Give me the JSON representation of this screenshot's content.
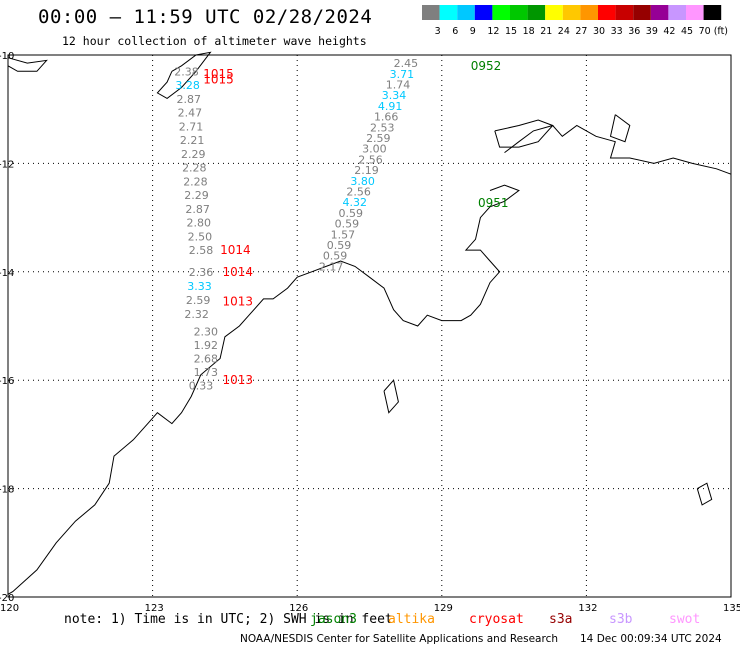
{
  "title": "00:00 – 11:59 UTC 02/28/2024",
  "subtitle": "12 hour collection of altimeter wave heights",
  "color_scale": {
    "labels": [
      "3",
      "6",
      "9",
      "12",
      "15",
      "18",
      "21",
      "24",
      "27",
      "30",
      "33",
      "36",
      "39",
      "42",
      "45",
      "70 (ft)"
    ],
    "colors": [
      "#7f7f7f",
      "#00ffff",
      "#00c8ff",
      "#0000ff",
      "#00ff00",
      "#00c800",
      "#009600",
      "#ffff00",
      "#ffc800",
      "#ff9600",
      "#ff0000",
      "#c80000",
      "#960000",
      "#960096",
      "#c896ff",
      "#ff96ff",
      "#000000"
    ]
  },
  "axes": {
    "lon_ticks": [
      "120",
      "123",
      "126",
      "129",
      "132",
      "135"
    ],
    "lat_ticks": [
      "-10",
      "-12",
      "-14",
      "-16",
      "-18",
      "-20"
    ]
  },
  "tracks": [
    {
      "label": "0952",
      "label_color": "#008000",
      "points": [
        {
          "lon": 127.3,
          "lat": -10.1,
          "swh": "2.45",
          "color": "#7f7f7f"
        },
        {
          "lon": 127.3,
          "lat": -10.3,
          "swh": "3.71",
          "color": "#00c8ff"
        },
        {
          "lon": 127.3,
          "lat": -10.5,
          "swh": "1.74",
          "color": "#7f7f7f"
        },
        {
          "lon": 127.3,
          "lat": -10.7,
          "swh": "3.34",
          "color": "#00c8ff"
        },
        {
          "lon": 127.3,
          "lat": -10.9,
          "swh": "4.91",
          "color": "#00c8ff"
        },
        {
          "lon": 127.3,
          "lat": -11.1,
          "swh": "1.66",
          "color": "#7f7f7f"
        },
        {
          "lon": 127.3,
          "lat": -11.3,
          "swh": "2.53",
          "color": "#7f7f7f"
        },
        {
          "lon": 127.3,
          "lat": -11.5,
          "swh": "2.59",
          "color": "#7f7f7f"
        },
        {
          "lon": 127.3,
          "lat": -11.7,
          "swh": "3.00",
          "color": "#7f7f7f"
        },
        {
          "lon": 127.3,
          "lat": -11.9,
          "swh": "2.56",
          "color": "#7f7f7f"
        },
        {
          "lon": 127.3,
          "lat": -12.1,
          "swh": "2.19",
          "color": "#7f7f7f"
        },
        {
          "lon": 127.3,
          "lat": -12.3,
          "swh": "3.80",
          "color": "#00c8ff"
        },
        {
          "lon": 127.3,
          "lat": -12.5,
          "swh": "2.56",
          "color": "#7f7f7f"
        },
        {
          "lon": 127.3,
          "lat": -12.7,
          "swh": "4.32",
          "color": "#00c8ff"
        },
        {
          "lon": 127.3,
          "lat": -12.9,
          "swh": "0.59",
          "color": "#7f7f7f"
        },
        {
          "lon": 127.3,
          "lat": -13.1,
          "swh": "0.59",
          "color": "#7f7f7f"
        },
        {
          "lon": 127.3,
          "lat": -13.3,
          "swh": "1.57",
          "color": "#7f7f7f"
        },
        {
          "lon": 127.3,
          "lat": -13.5,
          "swh": "0.59",
          "color": "#7f7f7f"
        },
        {
          "lon": 127.3,
          "lat": -13.7,
          "swh": "0.59",
          "color": "#7f7f7f"
        },
        {
          "lon": 127.3,
          "lat": -13.9,
          "swh": "2.17",
          "color": "#7f7f7f"
        }
      ]
    },
    {
      "label": "0951",
      "label_color": "#008000",
      "points": []
    },
    {
      "label": "1015",
      "label_color": "#ff0000",
      "points": [
        {
          "swh": "2.38",
          "color": "#7f7f7f"
        },
        {
          "swh": "3.28",
          "color": "#00c8ff"
        },
        {
          "swh": "2.87",
          "color": "#7f7f7f"
        },
        {
          "swh": "2.47",
          "color": "#7f7f7f"
        },
        {
          "swh": "2.71",
          "color": "#7f7f7f"
        },
        {
          "swh": "2.21",
          "color": "#7f7f7f"
        },
        {
          "swh": "2.29",
          "color": "#7f7f7f"
        },
        {
          "swh": "2.28",
          "color": "#7f7f7f"
        },
        {
          "swh": "2.28",
          "color": "#7f7f7f"
        },
        {
          "swh": "2.29",
          "color": "#7f7f7f"
        },
        {
          "swh": "2.87",
          "color": "#7f7f7f"
        },
        {
          "swh": "2.80",
          "color": "#7f7f7f"
        },
        {
          "swh": "2.50",
          "color": "#7f7f7f"
        },
        {
          "swh": "2.58",
          "color": "#7f7f7f"
        }
      ]
    },
    {
      "label": "1014",
      "label_color": "#ff0000",
      "points": [
        {
          "swh": "2.36",
          "color": "#7f7f7f"
        },
        {
          "swh": "3.33",
          "color": "#00c8ff"
        },
        {
          "swh": "2.59",
          "color": "#7f7f7f"
        },
        {
          "swh": "2.32",
          "color": "#7f7f7f"
        }
      ]
    },
    {
      "label": "1013",
      "label_color": "#ff0000",
      "points": [
        {
          "swh": "2.30",
          "color": "#7f7f7f"
        },
        {
          "swh": "1.92",
          "color": "#7f7f7f"
        },
        {
          "swh": "2.68",
          "color": "#7f7f7f"
        },
        {
          "swh": "1.73",
          "color": "#7f7f7f"
        },
        {
          "swh": "0.33",
          "color": "#7f7f7f"
        }
      ]
    }
  ],
  "note": {
    "text": "note: 1) Time is in UTC; 2) SWH is in feet",
    "satellites": [
      {
        "name": "jason3",
        "color": "#008000"
      },
      {
        "name": "altika",
        "color": "#ff9600"
      },
      {
        "name": "cryosat",
        "color": "#ff0000"
      },
      {
        "name": "s3a",
        "color": "#960000"
      },
      {
        "name": "s3b",
        "color": "#c896ff"
      },
      {
        "name": "swot",
        "color": "#ff96ff"
      }
    ]
  },
  "credit": "NOAA/NESDIS Center for Satellite Applications and Research",
  "credit_time": "14 Dec 00:09:34 UTC 2024"
}
